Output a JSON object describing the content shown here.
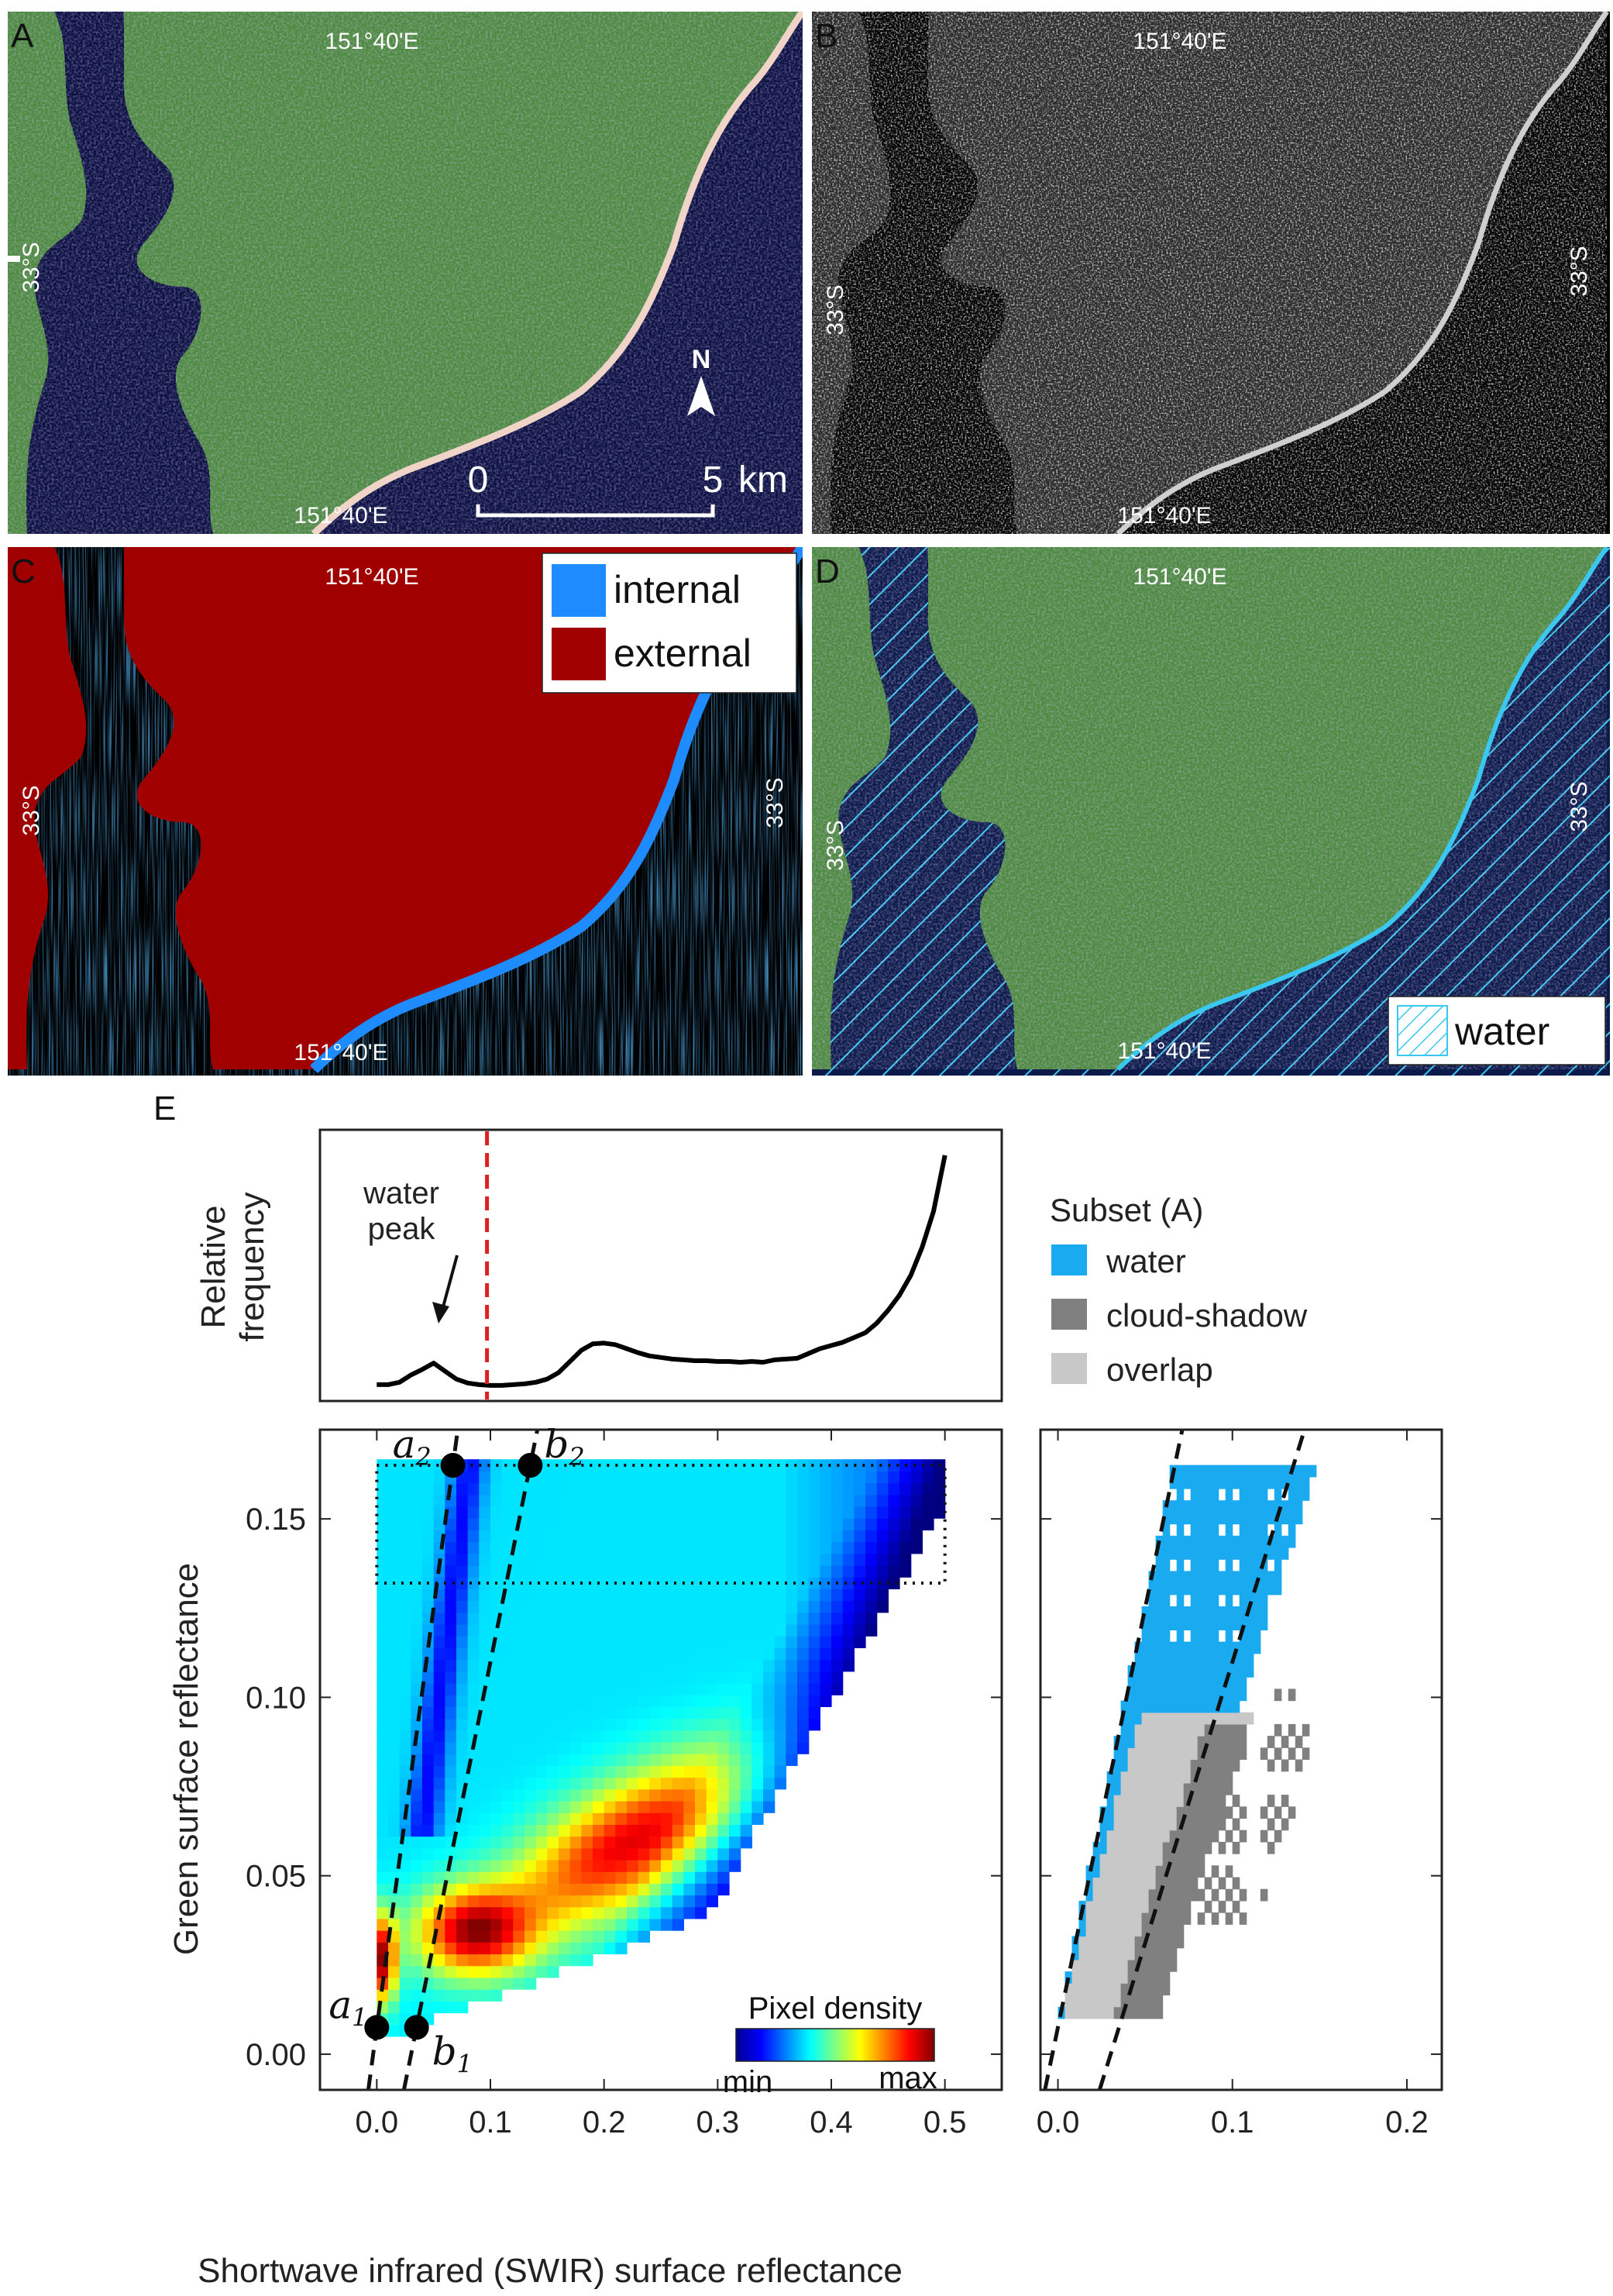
{
  "panels": {
    "A": {
      "letter": "A",
      "lon_top": "151°40'E",
      "lon_bottom": "151°40'E",
      "lat_left": "33°S",
      "north": "N",
      "scale_start": "0",
      "scale_end": "5",
      "scale_unit": "km"
    },
    "B": {
      "letter": "B",
      "lon_top": "151°40'E",
      "lon_bottom": "151°40'E",
      "lat_left": "33°S",
      "lat_right": "33°S"
    },
    "C": {
      "letter": "C",
      "lon_top": "151°40'E",
      "lon_bottom": "151°40'E",
      "lat_left": "33°S",
      "lat_right": "33°S",
      "legend": [
        {
          "label": "internal",
          "color": "#1e8bff"
        },
        {
          "label": "external",
          "color": "#a00000"
        }
      ]
    },
    "D": {
      "letter": "D",
      "lon_top": "151°40'E",
      "lon_bottom": "151°40'E",
      "lat_left": "33°S",
      "lat_right": "33°S",
      "legend": [
        {
          "label": "water",
          "pattern": "hatch",
          "color": "#3ac8f0"
        }
      ]
    }
  },
  "panel_E_letter": "E",
  "colors": {
    "water": "#1aaaf0",
    "cloud_shadow": "#808080",
    "overlap": "#c8c8c8",
    "land_green": "#4a8a3a",
    "urban": "#8f84cc",
    "sea": "#0b1040",
    "external": "#a00000",
    "internal": "#1e8bff",
    "threshold": "#e02020"
  },
  "chart_data": [
    {
      "type": "line",
      "ylabel": "Relative\nfrequency",
      "annotation": "water\npeak",
      "xlim": [
        -0.05,
        0.55
      ],
      "threshold_x": 0.097,
      "x": [
        0.0,
        0.01,
        0.02,
        0.03,
        0.04,
        0.05,
        0.06,
        0.07,
        0.08,
        0.09,
        0.1,
        0.11,
        0.12,
        0.13,
        0.14,
        0.15,
        0.16,
        0.17,
        0.18,
        0.19,
        0.2,
        0.21,
        0.22,
        0.23,
        0.24,
        0.25,
        0.26,
        0.27,
        0.28,
        0.29,
        0.3,
        0.31,
        0.32,
        0.33,
        0.34,
        0.35,
        0.36,
        0.37,
        0.38,
        0.39,
        0.4,
        0.41,
        0.42,
        0.43,
        0.44,
        0.45,
        0.46,
        0.47,
        0.48,
        0.49,
        0.5
      ],
      "y": [
        0.03,
        0.03,
        0.06,
        0.15,
        0.22,
        0.3,
        0.2,
        0.1,
        0.05,
        0.03,
        0.02,
        0.02,
        0.03,
        0.04,
        0.06,
        0.1,
        0.18,
        0.32,
        0.46,
        0.54,
        0.55,
        0.53,
        0.48,
        0.43,
        0.39,
        0.37,
        0.35,
        0.34,
        0.33,
        0.33,
        0.32,
        0.32,
        0.31,
        0.32,
        0.31,
        0.34,
        0.35,
        0.36,
        0.42,
        0.48,
        0.52,
        0.56,
        0.62,
        0.68,
        0.8,
        0.96,
        1.15,
        1.4,
        1.75,
        2.2,
        2.9
      ]
    },
    {
      "type": "heatmap",
      "xlabel": "Shortwave infrared (SWIR) surface reflectance",
      "ylabel": "Green surface reflectance",
      "xlim": [
        -0.05,
        0.55
      ],
      "ylim": [
        -0.01,
        0.175
      ],
      "xticks": [
        "0.0",
        "0.1",
        "0.2",
        "0.3",
        "0.4",
        "0.5"
      ],
      "yticks": [
        "0.00",
        "0.05",
        "0.10",
        "0.15"
      ],
      "colorbar_label": "Pixel density",
      "colorbar_min": "min",
      "colorbar_max": "max",
      "points": [
        {
          "label": "a",
          "sub": "1",
          "x": 0.0,
          "y": 0.0075
        },
        {
          "label": "b",
          "sub": "1",
          "x": 0.035,
          "y": 0.0075
        },
        {
          "label": "a",
          "sub": "2",
          "x": 0.067,
          "y": 0.165
        },
        {
          "label": "b",
          "sub": "2",
          "x": 0.135,
          "y": 0.165
        }
      ],
      "subset_box": {
        "x": [
          0.0,
          0.5
        ],
        "y": [
          0.132,
          0.165
        ]
      }
    },
    {
      "type": "heatmap",
      "xlim": [
        -0.01,
        0.22
      ],
      "ylim": [
        -0.01,
        0.175
      ],
      "xticks": [
        "0.0",
        "0.1",
        "0.2"
      ],
      "legend_title": "Subset (A)",
      "legend": [
        {
          "label": "water",
          "color": "#1aaaf0"
        },
        {
          "label": "cloud-shadow",
          "color": "#808080"
        },
        {
          "label": "overlap",
          "color": "#c8c8c8"
        }
      ]
    }
  ]
}
